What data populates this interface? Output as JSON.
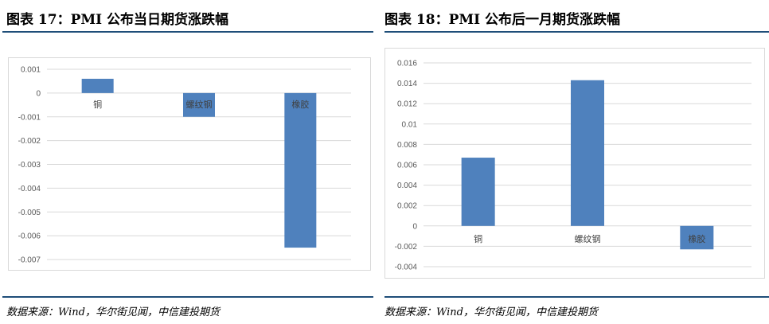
{
  "figures": [
    {
      "title": "图表 17：PMI 公布当日期货涨跌幅",
      "source": "数据来源：Wind，华尔街见闻，中信建投期货"
    },
    {
      "title": "图表 18：PMI 公布后一月期货涨跌幅",
      "source": "数据来源：Wind，华尔街见闻，中信建投期货"
    }
  ],
  "chart_data": [
    {
      "type": "bar",
      "title": "",
      "categories": [
        "铜",
        "螺纹钢",
        "橡胶"
      ],
      "values": [
        0.0006,
        -0.001,
        -0.0065
      ],
      "ylim": [
        -0.007,
        0.001
      ],
      "yticks": [
        "0.001",
        "0",
        "-0.001",
        "-0.002",
        "-0.003",
        "-0.004",
        "-0.005",
        "-0.006",
        "-0.007"
      ],
      "ytick_values": [
        0.001,
        0,
        -0.001,
        -0.002,
        -0.003,
        -0.004,
        -0.005,
        -0.006,
        -0.007
      ],
      "grid": true,
      "bar_color": "#4f81bd",
      "grid_color": "#d9d9d9"
    },
    {
      "type": "bar",
      "title": "",
      "categories": [
        "铜",
        "螺纹钢",
        "橡胶"
      ],
      "values": [
        0.0067,
        0.0143,
        -0.0023
      ],
      "ylim": [
        -0.004,
        0.016
      ],
      "yticks": [
        "0.016",
        "0.014",
        "0.012",
        "0.01",
        "0.008",
        "0.006",
        "0.004",
        "0.002",
        "0",
        "-0.002",
        "-0.004"
      ],
      "ytick_values": [
        0.016,
        0.014,
        0.012,
        0.01,
        0.008,
        0.006,
        0.004,
        0.002,
        0,
        -0.002,
        -0.004
      ],
      "grid": true,
      "bar_color": "#4f81bd",
      "grid_color": "#d9d9d9"
    }
  ]
}
